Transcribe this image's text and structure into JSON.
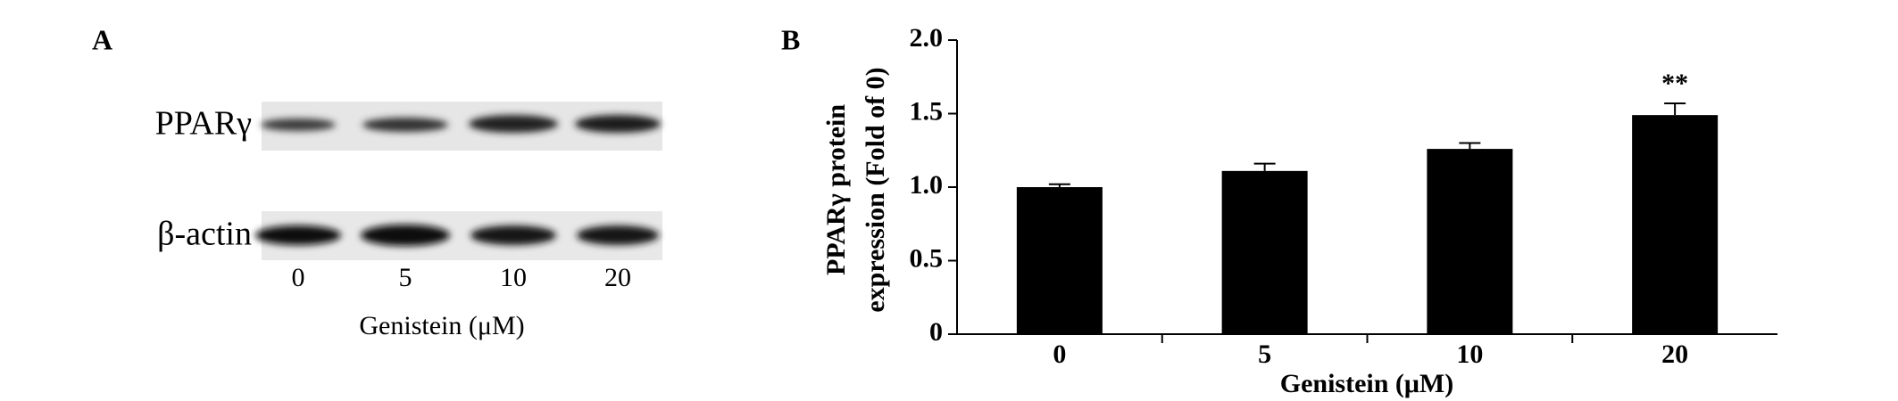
{
  "panel_a": {
    "label": "A",
    "rows": [
      "PPARγ",
      "β-actin"
    ],
    "lanes": [
      "0",
      "5",
      "10",
      "20"
    ],
    "xlabel": "Genistein (μM)"
  },
  "chart_data": {
    "type": "bar",
    "panel_label": "B",
    "ylabel": [
      "PPARγ protein",
      "expression (Fold of 0)"
    ],
    "xlabel": "Genistein (μM)",
    "categories": [
      "0",
      "5",
      "10",
      "20"
    ],
    "values": [
      1.0,
      1.11,
      1.26,
      1.49
    ],
    "errors": [
      0.02,
      0.05,
      0.04,
      0.08
    ],
    "annotations": [
      null,
      null,
      null,
      "**"
    ],
    "color": "#000000",
    "ylim": [
      0,
      2
    ],
    "yticks": [
      0,
      0.5,
      {
        "value": 1,
        "label": "1.0"
      },
      1.5,
      {
        "value": 2,
        "label": "2.0"
      }
    ]
  }
}
